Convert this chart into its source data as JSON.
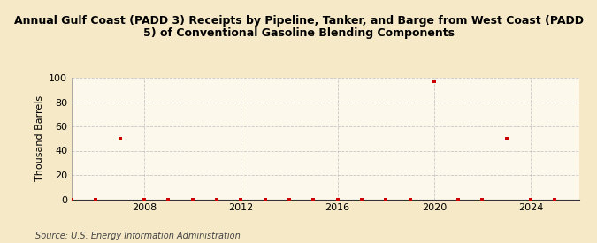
{
  "title": "Annual Gulf Coast (PADD 3) Receipts by Pipeline, Tanker, and Barge from West Coast (PADD\n5) of Conventional Gasoline Blending Components",
  "ylabel": "Thousand Barrels",
  "source": "Source: U.S. Energy Information Administration",
  "background_color": "#f5e9c8",
  "plot_background_color": "#fdf8ec",
  "marker_color": "#cc0000",
  "grid_color": "#bbbbbb",
  "xlim": [
    2005,
    2026
  ],
  "ylim": [
    0,
    100
  ],
  "xticks": [
    2008,
    2012,
    2016,
    2020,
    2024
  ],
  "yticks": [
    0,
    20,
    40,
    60,
    80,
    100
  ],
  "x_data": [
    2005,
    2006,
    2007,
    2008,
    2009,
    2010,
    2011,
    2012,
    2013,
    2014,
    2015,
    2016,
    2017,
    2018,
    2019,
    2020,
    2021,
    2022,
    2023,
    2024,
    2025
  ],
  "y_data": [
    0,
    0,
    50,
    0,
    0,
    0,
    0,
    0,
    0,
    0,
    0,
    0,
    0,
    0,
    0,
    97,
    0,
    0,
    50,
    0,
    0
  ]
}
